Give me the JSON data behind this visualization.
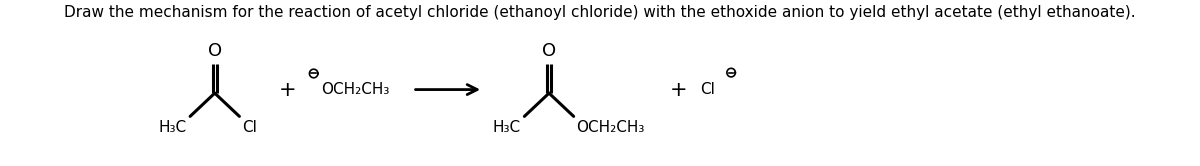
{
  "title": "Draw the mechanism for the reaction of acetyl chloride (ethanoyl chloride) with the ethoxide anion to yield ethyl acetate (ethyl ethanoate).",
  "title_fontsize": 11,
  "bg_color": "#ffffff",
  "line_color": "#000000",
  "text_color": "#000000",
  "fig_width": 12.0,
  "fig_height": 1.66,
  "dpi": 100,
  "xlim": [
    0,
    12
  ],
  "ylim": [
    0,
    1.66
  ]
}
